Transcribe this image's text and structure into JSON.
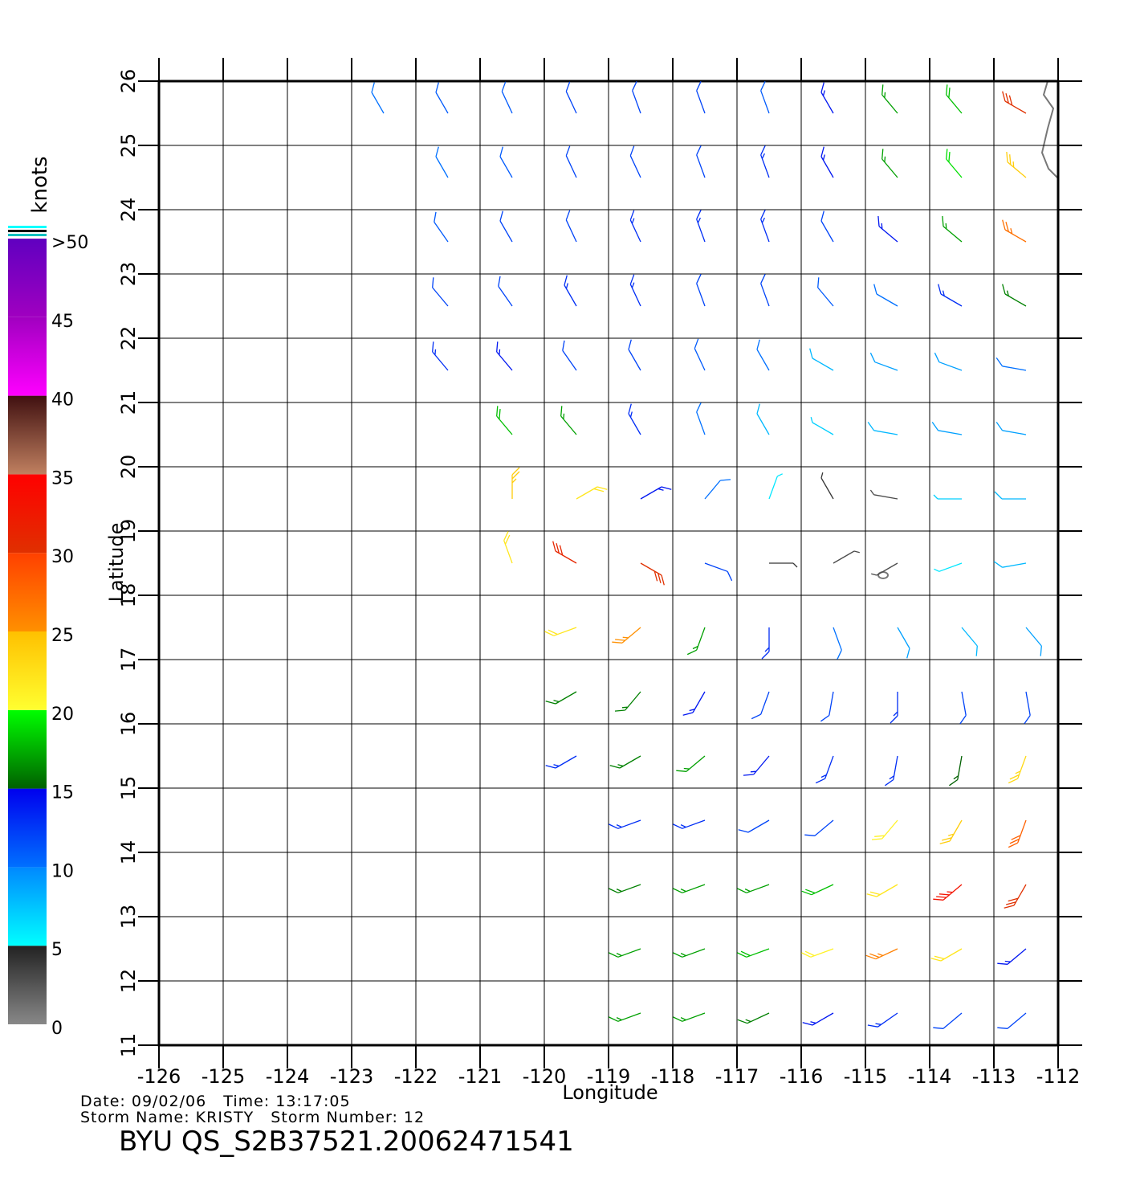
{
  "chart_data": {
    "type": "wind-barb",
    "x_label": "Longitude",
    "y_label": "Latitude",
    "xlim": [
      -126,
      -112
    ],
    "ylim": [
      11,
      26
    ],
    "xticks": [
      -126,
      -125,
      -124,
      -123,
      -122,
      -121,
      -120,
      -119,
      -118,
      -117,
      -116,
      -115,
      -114,
      -113,
      -112
    ],
    "yticks": [
      11,
      12,
      13,
      14,
      15,
      16,
      17,
      18,
      19,
      20,
      21,
      22,
      23,
      24,
      25,
      26
    ],
    "grid": true,
    "colorbar": {
      "label": "knots",
      "lim": [
        0,
        50
      ],
      "ticks": [
        0,
        5,
        10,
        15,
        20,
        25,
        30,
        35,
        40,
        45,
        {
          "value": 50,
          "label": ">50"
        }
      ],
      "band_colors": [
        [
          "#888888",
          "#222222"
        ],
        [
          "#00ffff",
          "#0088ff"
        ],
        [
          "#0070ff",
          "#0000ee"
        ],
        [
          "#006000",
          "#00ff00"
        ],
        [
          "#ffff30",
          "#ffc000"
        ],
        [
          "#ff9000",
          "#ff4000"
        ],
        [
          "#e03000",
          "#ff0000"
        ],
        [
          "#c08060",
          "#401010"
        ],
        [
          "#ff00ff",
          "#a000c0"
        ],
        [
          "#a000c0",
          "#6000c0"
        ]
      ]
    },
    "info": {
      "date_line": "Date: 09/02/06   Time: 13:17:05",
      "storm_line": "Storm Name: KRISTY   Storm Number: 12",
      "file_name": "BYU QS_S2B37521.20062471541"
    },
    "barbs": {
      "lon": [
        -122.5,
        -121.5,
        -120.5,
        -119.5,
        -118.5,
        -117.5,
        -116.5,
        -115.5,
        -114.5,
        -113.5,
        -112.5,
        -121.5,
        -120.5,
        -119.5,
        -118.5,
        -117.5,
        -116.5,
        -115.5,
        -114.5,
        -113.5,
        -112.5,
        -121.5,
        -120.5,
        -119.5,
        -118.5,
        -117.5,
        -116.5,
        -115.5,
        -114.5,
        -113.5,
        -112.5,
        -121.5,
        -120.5,
        -119.5,
        -118.5,
        -117.5,
        -116.5,
        -115.5,
        -114.5,
        -113.5,
        -112.5,
        -121.5,
        -120.5,
        -119.5,
        -118.5,
        -117.5,
        -116.5,
        -115.5,
        -114.5,
        -113.5,
        -112.5,
        -120.5,
        -119.5,
        -118.5,
        -117.5,
        -116.5,
        -115.5,
        -114.5,
        -113.5,
        -112.5,
        -120.5,
        -119.5,
        -118.5,
        -117.5,
        -116.5,
        -115.5,
        -114.5,
        -113.5,
        -112.5,
        -120.5,
        -119.5,
        -118.5,
        -117.5,
        -116.5,
        -115.5,
        -114.5,
        -113.5,
        -112.5,
        -119.5,
        -118.5,
        -117.5,
        -116.5,
        -115.5,
        -114.5,
        -113.5,
        -112.5,
        -119.5,
        -118.5,
        -117.5,
        -116.5,
        -115.5,
        -114.5,
        -113.5,
        -112.5,
        -119.5,
        -118.5,
        -117.5,
        -116.5,
        -115.5,
        -114.5,
        -113.5,
        -112.5,
        -118.5,
        -117.5,
        -116.5,
        -115.5,
        -114.5,
        -113.5,
        -112.5,
        -118.5,
        -117.5,
        -116.5,
        -115.5,
        -114.5,
        -113.5,
        -112.5,
        -118.5,
        -117.5,
        -116.5,
        -115.5,
        -114.5,
        -113.5,
        -112.5,
        -118.5,
        -117.5,
        -116.5,
        -115.5,
        -114.5,
        -113.5,
        -112.5
      ],
      "lat": [
        25.5,
        25.5,
        25.5,
        25.5,
        25.5,
        25.5,
        25.5,
        25.5,
        25.5,
        25.5,
        25.5,
        24.5,
        24.5,
        24.5,
        24.5,
        24.5,
        24.5,
        24.5,
        24.5,
        24.5,
        24.5,
        23.5,
        23.5,
        23.5,
        23.5,
        23.5,
        23.5,
        23.5,
        23.5,
        23.5,
        23.5,
        22.5,
        22.5,
        22.5,
        22.5,
        22.5,
        22.5,
        22.5,
        22.5,
        22.5,
        22.5,
        21.5,
        21.5,
        21.5,
        21.5,
        21.5,
        21.5,
        21.5,
        21.5,
        21.5,
        21.5,
        20.5,
        20.5,
        20.5,
        20.5,
        20.5,
        20.5,
        20.5,
        20.5,
        20.5,
        19.5,
        19.5,
        19.5,
        19.5,
        19.5,
        19.5,
        19.5,
        19.5,
        19.5,
        18.5,
        18.5,
        18.5,
        18.5,
        18.5,
        18.5,
        18.5,
        18.5,
        18.5,
        17.5,
        17.5,
        17.5,
        17.5,
        17.5,
        17.5,
        17.5,
        17.5,
        16.5,
        16.5,
        16.5,
        16.5,
        16.5,
        16.5,
        16.5,
        16.5,
        15.5,
        15.5,
        15.5,
        15.5,
        15.5,
        15.5,
        15.5,
        15.5,
        14.5,
        14.5,
        14.5,
        14.5,
        14.5,
        14.5,
        14.5,
        13.5,
        13.5,
        13.5,
        13.5,
        13.5,
        13.5,
        13.5,
        12.5,
        12.5,
        12.5,
        12.5,
        12.5,
        12.5,
        12.5,
        11.5,
        11.5,
        11.5,
        11.5,
        11.5,
        11.5,
        11.5
      ],
      "speed": [
        10,
        11,
        11,
        12,
        12,
        12,
        11,
        14,
        17,
        18,
        30,
        10,
        11,
        12,
        12,
        12,
        13,
        14,
        17,
        19,
        24,
        11,
        12,
        12,
        13,
        13,
        13,
        12,
        14,
        17,
        27,
        12,
        12,
        13,
        13,
        12,
        12,
        11,
        10,
        13,
        16,
        13,
        14,
        12,
        12,
        11,
        10,
        8,
        9,
        9,
        10,
        18,
        17,
        13,
        10,
        8,
        7,
        8,
        9,
        9,
        24,
        22,
        14,
        10,
        6,
        4,
        3,
        7,
        8,
        22,
        31,
        30,
        12,
        4,
        3,
        3,
        6,
        8,
        22,
        25,
        17,
        13,
        10,
        9,
        8,
        9,
        16,
        16,
        14,
        12,
        12,
        13,
        12,
        12,
        13,
        16,
        17,
        14,
        13,
        13,
        15,
        23,
        13,
        13,
        12,
        12,
        21,
        24,
        28,
        16,
        17,
        17,
        18,
        22,
        33,
        30,
        17,
        17,
        18,
        21,
        26,
        22,
        14,
        17,
        17,
        16,
        14,
        13,
        12,
        12
      ],
      "direction": [
        330,
        330,
        335,
        335,
        340,
        340,
        340,
        330,
        320,
        320,
        300,
        330,
        330,
        335,
        335,
        340,
        340,
        330,
        320,
        320,
        310,
        325,
        330,
        335,
        335,
        340,
        340,
        330,
        310,
        310,
        300,
        320,
        325,
        330,
        335,
        340,
        340,
        320,
        300,
        300,
        300,
        320,
        320,
        325,
        330,
        335,
        330,
        300,
        290,
        290,
        280,
        320,
        320,
        330,
        340,
        330,
        300,
        280,
        280,
        280,
        0,
        60,
        60,
        40,
        20,
        330,
        280,
        270,
        270,
        340,
        300,
        120,
        110,
        90,
        60,
        240,
        250,
        260,
        250,
        230,
        200,
        180,
        160,
        150,
        140,
        140,
        240,
        220,
        210,
        200,
        190,
        180,
        170,
        170,
        240,
        240,
        230,
        220,
        200,
        190,
        190,
        200,
        250,
        250,
        240,
        230,
        220,
        210,
        200,
        250,
        250,
        250,
        245,
        240,
        230,
        210,
        250,
        250,
        250,
        250,
        245,
        240,
        230,
        250,
        250,
        245,
        240,
        235,
        230,
        230
      ]
    }
  }
}
